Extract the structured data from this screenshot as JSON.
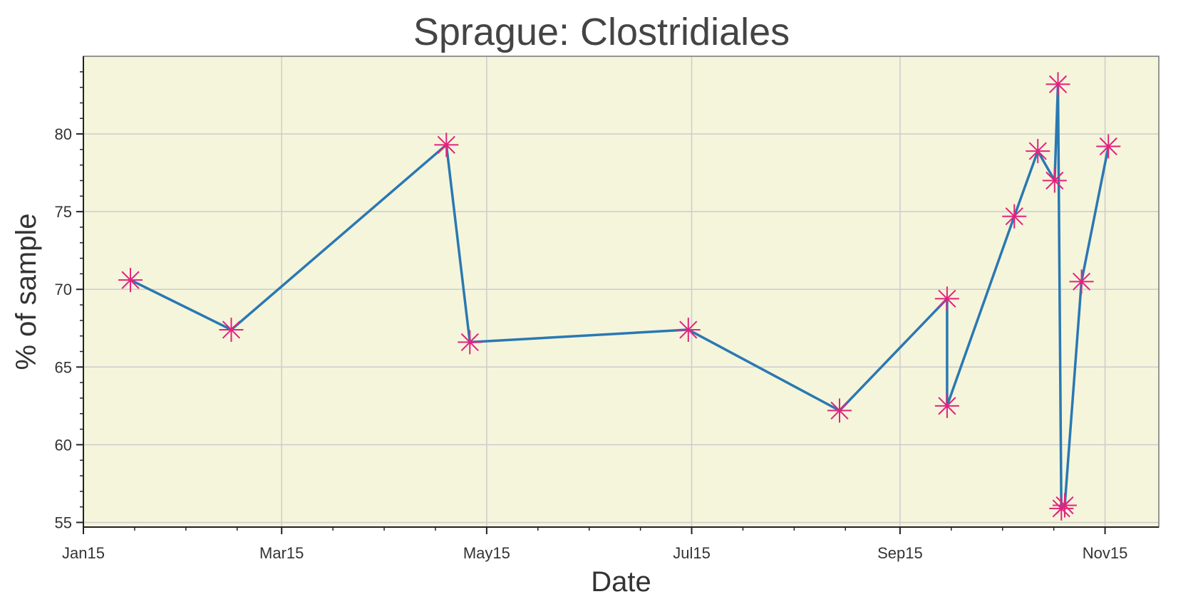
{
  "chart_data": {
    "type": "line",
    "title": "Sprague: Clostridiales",
    "xlabel": "Date",
    "ylabel": "% of sample",
    "x_tick_labels": [
      "Jan15",
      "Mar15",
      "May15",
      "Jul15",
      "Sep15",
      "Nov15"
    ],
    "x_tick_dates": [
      "2015-01-15",
      "2015-03-15",
      "2015-05-15",
      "2015-07-15",
      "2015-09-15",
      "2015-11-15"
    ],
    "xlim": [
      "2015-01-15",
      "2015-12-01"
    ],
    "ylim": [
      54.7,
      85.0
    ],
    "y_ticks": [
      55,
      60,
      65,
      70,
      75,
      80
    ],
    "grid": true,
    "line_color": "#2a78b2",
    "marker_color": "#e3227d",
    "background_color": "#f5f5dc",
    "marker": "asterisk",
    "series": [
      {
        "points": [
          {
            "x": "2015-01-29",
            "y": 70.6
          },
          {
            "x": "2015-02-28",
            "y": 67.4
          },
          {
            "x": "2015-05-03",
            "y": 79.3
          },
          {
            "x": "2015-05-10",
            "y": 66.6
          },
          {
            "x": "2015-07-14",
            "y": 67.4
          },
          {
            "x": "2015-08-28",
            "y": 62.2
          },
          {
            "x": "2015-09-29",
            "y": 69.4
          },
          {
            "x": "2015-09-29",
            "y": 62.5
          },
          {
            "x": "2015-10-19",
            "y": 74.7
          },
          {
            "x": "2015-10-26",
            "y": 78.9
          },
          {
            "x": "2015-10-31",
            "y": 77.0
          },
          {
            "x": "2015-11-01",
            "y": 83.2
          },
          {
            "x": "2015-11-02",
            "y": 55.9
          },
          {
            "x": "2015-11-03",
            "y": 56.1
          },
          {
            "x": "2015-11-08",
            "y": 70.5
          },
          {
            "x": "2015-11-16",
            "y": 79.2
          }
        ]
      }
    ]
  }
}
